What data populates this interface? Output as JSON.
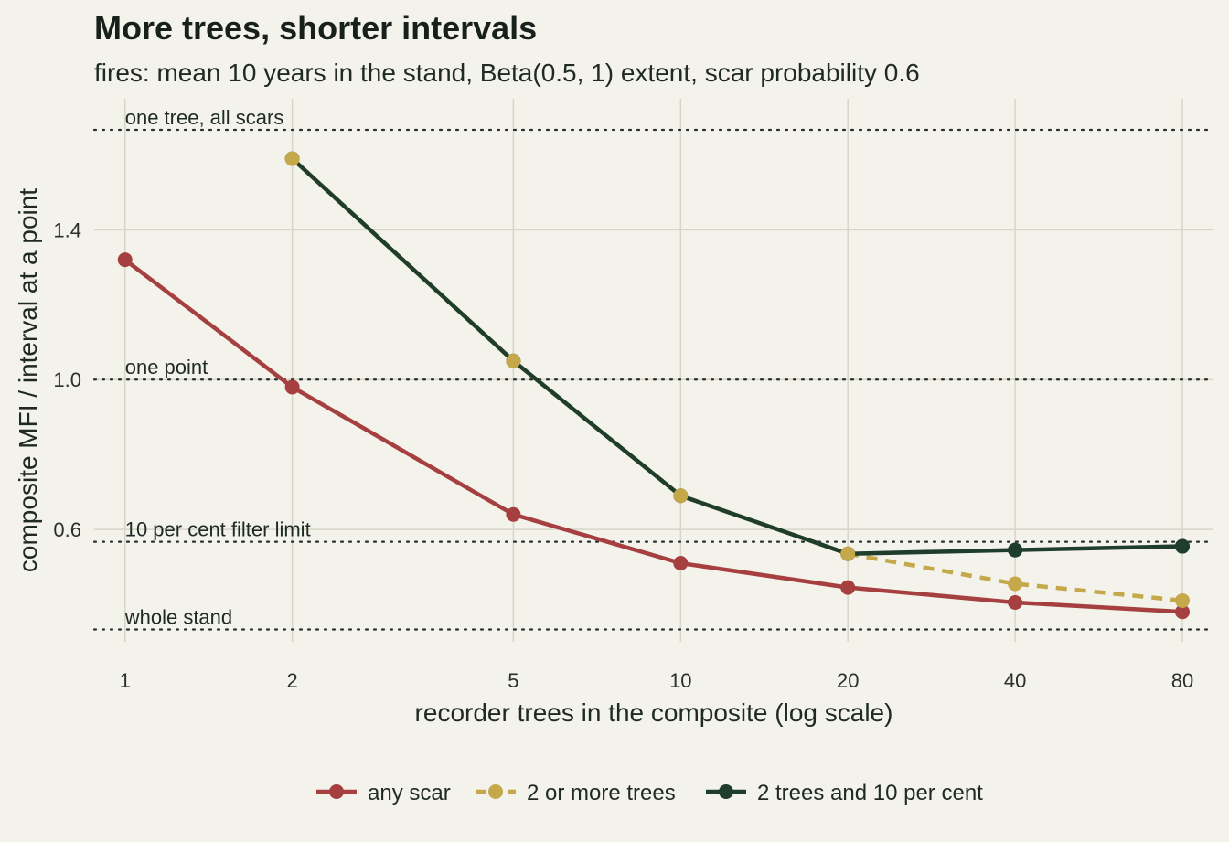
{
  "chart_data": {
    "type": "line",
    "title": "More trees, shorter intervals",
    "subtitle": "fires: mean 10 years in the stand, Beta(0.5, 1) extent, scar probability 0.6",
    "xlabel": "recorder trees in the composite (log scale)",
    "ylabel": "composite MFI / interval at a point",
    "x_scale": "log",
    "x_ticks": [
      1,
      2,
      5,
      10,
      20,
      40,
      80
    ],
    "x_tick_labels": [
      "1",
      "2",
      "5",
      "10",
      "20",
      "40",
      "80"
    ],
    "xlim": [
      0.88,
      91
    ],
    "y_ticks": [
      0.6,
      1.0,
      1.4
    ],
    "y_tick_labels": [
      "0.6",
      "1.0",
      "1.4"
    ],
    "ylim": [
      0.3,
      1.75
    ],
    "grid": true,
    "legend_position": "bottom",
    "reference_lines": [
      {
        "label": "one tree, all scars",
        "y": 1.667
      },
      {
        "label": "one point",
        "y": 1.0
      },
      {
        "label": "10 per cent filter limit",
        "y": 0.567
      },
      {
        "label": "whole stand",
        "y": 0.333
      }
    ],
    "series": [
      {
        "name": "any scar",
        "color": "#a63f3f",
        "dash": "solid",
        "x": [
          1,
          2,
          5,
          10,
          20,
          40,
          80
        ],
        "y": [
          1.32,
          0.98,
          0.64,
          0.51,
          0.445,
          0.405,
          0.38
        ]
      },
      {
        "name": "2 or more trees",
        "color": "#c4a84a",
        "dash": "dashed",
        "x": [
          2,
          5,
          10,
          20,
          40,
          80
        ],
        "y": [
          1.59,
          1.05,
          0.69,
          0.535,
          0.455,
          0.41
        ]
      },
      {
        "name": "2 trees and 10 per cent",
        "color": "#1f3d2b",
        "dash": "solid",
        "x": [
          2,
          5,
          10,
          20,
          40,
          80
        ],
        "y": [
          1.59,
          1.05,
          0.69,
          0.535,
          0.545,
          0.555
        ]
      }
    ]
  }
}
